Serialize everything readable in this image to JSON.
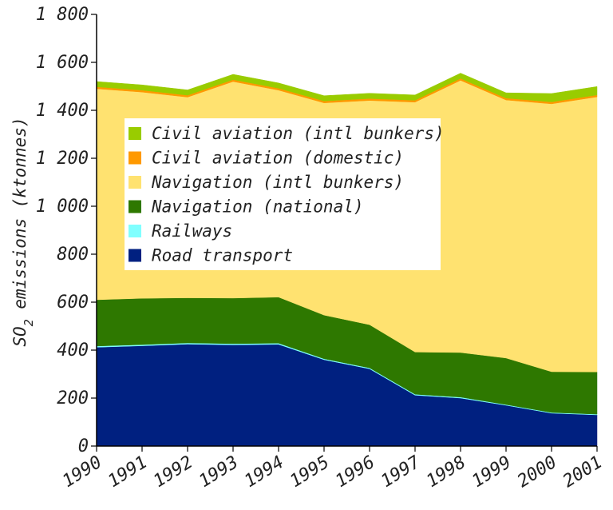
{
  "chart_data": {
    "type": "area",
    "stacked": true,
    "ylabel": {
      "main": "SO",
      "sub": "2",
      "rest": " emissions (ktonnes)"
    },
    "ylim": [
      0,
      1800
    ],
    "y_ticks": [
      0,
      200,
      400,
      600,
      800,
      1000,
      1200,
      1400,
      1600,
      1800
    ],
    "y_tick_labels": [
      "0",
      "200",
      "400",
      "600",
      "800",
      "1 000",
      "1 200",
      "1 400",
      "1 600",
      "1 800"
    ],
    "x": [
      "1990",
      "1991",
      "1992",
      "1993",
      "1994",
      "1995",
      "1996",
      "1997",
      "1998",
      "1999",
      "2000",
      "2001"
    ],
    "legend_position": "upper-left-inside",
    "series": [
      {
        "name": "Road transport",
        "color": "#002080",
        "values": [
          412,
          418,
          425,
          422,
          424,
          360,
          322,
          212,
          200,
          170,
          137,
          130
        ]
      },
      {
        "name": "Railways",
        "color": "#80ffff",
        "values": [
          5,
          5,
          5,
          5,
          5,
          4,
          4,
          4,
          4,
          3,
          3,
          3
        ]
      },
      {
        "name": "Navigation (national)",
        "color": "#2e7800",
        "values": [
          193,
          193,
          188,
          190,
          192,
          182,
          180,
          176,
          186,
          194,
          170,
          176
        ]
      },
      {
        "name": "Navigation (intl bunkers)",
        "color": "#ffe270",
        "values": [
          880,
          860,
          837,
          903,
          863,
          885,
          935,
          1042,
          1135,
          1076,
          1117,
          1147
        ]
      },
      {
        "name": "Civil aviation (domestic)",
        "color": "#ff9900",
        "values": [
          8,
          8,
          8,
          8,
          8,
          8,
          8,
          8,
          8,
          8,
          8,
          8
        ]
      },
      {
        "name": "Civil aviation (intl bunkers)",
        "color": "#99cc00",
        "values": [
          22,
          22,
          22,
          22,
          22,
          22,
          22,
          22,
          22,
          22,
          35,
          35
        ]
      }
    ],
    "legend_order": [
      "Civil aviation (intl bunkers)",
      "Civil aviation (domestic)",
      "Navigation (intl bunkers)",
      "Navigation (national)",
      "Railways",
      "Road transport"
    ]
  }
}
